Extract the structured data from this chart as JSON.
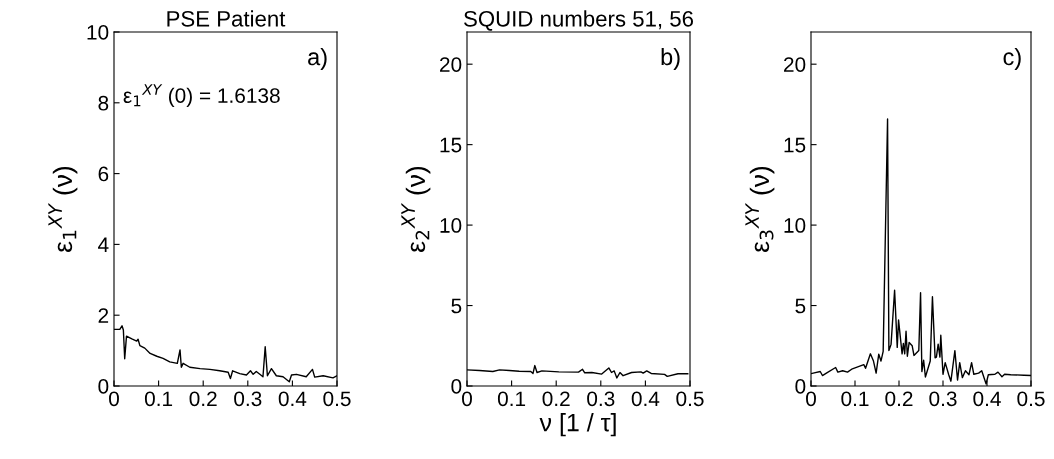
{
  "chart_data": [
    {
      "type": "line",
      "title": "PSE Patient",
      "ylabel": "ε$_{1}$$^{XY}$ (ν)",
      "annotations": [
        "a)",
        "ε$_{1}$$^{XY}$ (0) = 1.6138"
      ],
      "xlim": [
        0,
        0.5
      ],
      "ylim": [
        0,
        10
      ],
      "xticks": [
        0,
        0.1,
        0.2,
        0.3,
        0.4,
        0.5
      ],
      "yticks": [
        0,
        2,
        4,
        6,
        8,
        10
      ],
      "grid": false,
      "legend": false,
      "marker": "none",
      "line_style": "solid",
      "series": [
        {
          "color": "#000000",
          "x": [
            0,
            0.013,
            0.018,
            0.021,
            0.024,
            0.028,
            0.04,
            0.051,
            0.054,
            0.058,
            0.069,
            0.081,
            0.096,
            0.11,
            0.125,
            0.142,
            0.148,
            0.151,
            0.155,
            0.17,
            0.193,
            0.215,
            0.237,
            0.256,
            0.261,
            0.266,
            0.282,
            0.297,
            0.306,
            0.312,
            0.319,
            0.327,
            0.334,
            0.339,
            0.344,
            0.353,
            0.364,
            0.379,
            0.393,
            0.398,
            0.409,
            0.431,
            0.445,
            0.45,
            0.469,
            0.491,
            0.5
          ],
          "values": [
            1.6,
            1.6,
            1.7,
            1.58,
            0.77,
            1.41,
            1.33,
            1.27,
            1.32,
            1.14,
            1.07,
            0.92,
            0.84,
            0.78,
            0.68,
            0.64,
            1.02,
            0.53,
            0.64,
            0.53,
            0.49,
            0.47,
            0.43,
            0.39,
            0.21,
            0.43,
            0.35,
            0.31,
            0.43,
            0.33,
            0.41,
            0.33,
            0.26,
            1.11,
            0.29,
            0.49,
            0.29,
            0.26,
            0.12,
            0.31,
            0.33,
            0.26,
            0.47,
            0.25,
            0.29,
            0.23,
            0.29
          ]
        }
      ]
    },
    {
      "type": "line",
      "title": "SQUID numbers 51, 56",
      "xlabel": "ν [1 / τ]",
      "ylabel": "ε$_{2}$$^{XY}$ (ν)",
      "annotations": [
        "b)"
      ],
      "xlim": [
        0,
        0.5
      ],
      "ylim": [
        0,
        22
      ],
      "xticks": [
        0,
        0.1,
        0.2,
        0.3,
        0.4,
        0.5
      ],
      "yticks": [
        0,
        5,
        10,
        15,
        20
      ],
      "grid": false,
      "legend": false,
      "marker": "none",
      "line_style": "solid",
      "series": [
        {
          "color": "#000000",
          "x": [
            0,
            0.028,
            0.058,
            0.073,
            0.095,
            0.117,
            0.143,
            0.148,
            0.152,
            0.157,
            0.168,
            0.206,
            0.25,
            0.259,
            0.264,
            0.28,
            0.302,
            0.318,
            0.324,
            0.33,
            0.336,
            0.343,
            0.35,
            0.369,
            0.39,
            0.395,
            0.403,
            0.413,
            0.443,
            0.449,
            0.473,
            0.495
          ],
          "values": [
            1.0,
            0.96,
            0.9,
            1.0,
            0.96,
            0.92,
            0.9,
            0.78,
            1.27,
            0.84,
            0.94,
            0.88,
            0.86,
            1.04,
            0.82,
            0.84,
            0.74,
            1.12,
            0.84,
            0.94,
            0.5,
            0.84,
            0.64,
            0.84,
            0.88,
            0.8,
            0.94,
            0.78,
            0.72,
            0.6,
            0.76,
            0.76
          ]
        }
      ]
    },
    {
      "type": "line",
      "ylabel": "ε$_{3}$$^{XY}$ (ν)",
      "annotations": [
        "c)"
      ],
      "xlim": [
        0,
        0.5
      ],
      "ylim": [
        0,
        22
      ],
      "xticks": [
        0,
        0.1,
        0.2,
        0.3,
        0.4,
        0.5
      ],
      "yticks": [
        0,
        5,
        10,
        15,
        20
      ],
      "grid": false,
      "legend": false,
      "marker": "none",
      "line_style": "solid",
      "series": [
        {
          "color": "#000000",
          "x": [
            0,
            0.021,
            0.026,
            0.035,
            0.056,
            0.061,
            0.072,
            0.083,
            0.094,
            0.12,
            0.124,
            0.135,
            0.142,
            0.148,
            0.154,
            0.159,
            0.164,
            0.174,
            0.177,
            0.182,
            0.19,
            0.196,
            0.199,
            0.207,
            0.21,
            0.213,
            0.216,
            0.219,
            0.223,
            0.23,
            0.234,
            0.245,
            0.249,
            0.252,
            0.256,
            0.26,
            0.271,
            0.276,
            0.282,
            0.285,
            0.289,
            0.293,
            0.295,
            0.3,
            0.305,
            0.313,
            0.318,
            0.327,
            0.333,
            0.338,
            0.344,
            0.351,
            0.359,
            0.365,
            0.37,
            0.381,
            0.388,
            0.398,
            0.403,
            0.418,
            0.425,
            0.434,
            0.44,
            0.454,
            0.484,
            0.499
          ],
          "values": [
            0.77,
            0.9,
            0.65,
            0.8,
            1.15,
            0.86,
            0.95,
            0.86,
            1.07,
            1.33,
            1.1,
            2.0,
            1.55,
            0.8,
            1.98,
            1.55,
            2.15,
            16.6,
            2.2,
            2.6,
            5.95,
            2.4,
            4.1,
            2.0,
            2.65,
            2.0,
            3.4,
            1.85,
            2.7,
            2.5,
            1.9,
            2.2,
            5.8,
            0.9,
            1.6,
            0.56,
            1.55,
            5.55,
            1.75,
            1.8,
            2.6,
            1.8,
            3.15,
            0.73,
            1.45,
            0.7,
            0.3,
            2.2,
            0.37,
            1.45,
            0.52,
            0.95,
            0.7,
            1.45,
            0.73,
            0.8,
            0.95,
            0.13,
            0.7,
            0.73,
            0.86,
            0.58,
            0.73,
            0.7,
            0.67,
            0.65
          ]
        }
      ]
    }
  ]
}
